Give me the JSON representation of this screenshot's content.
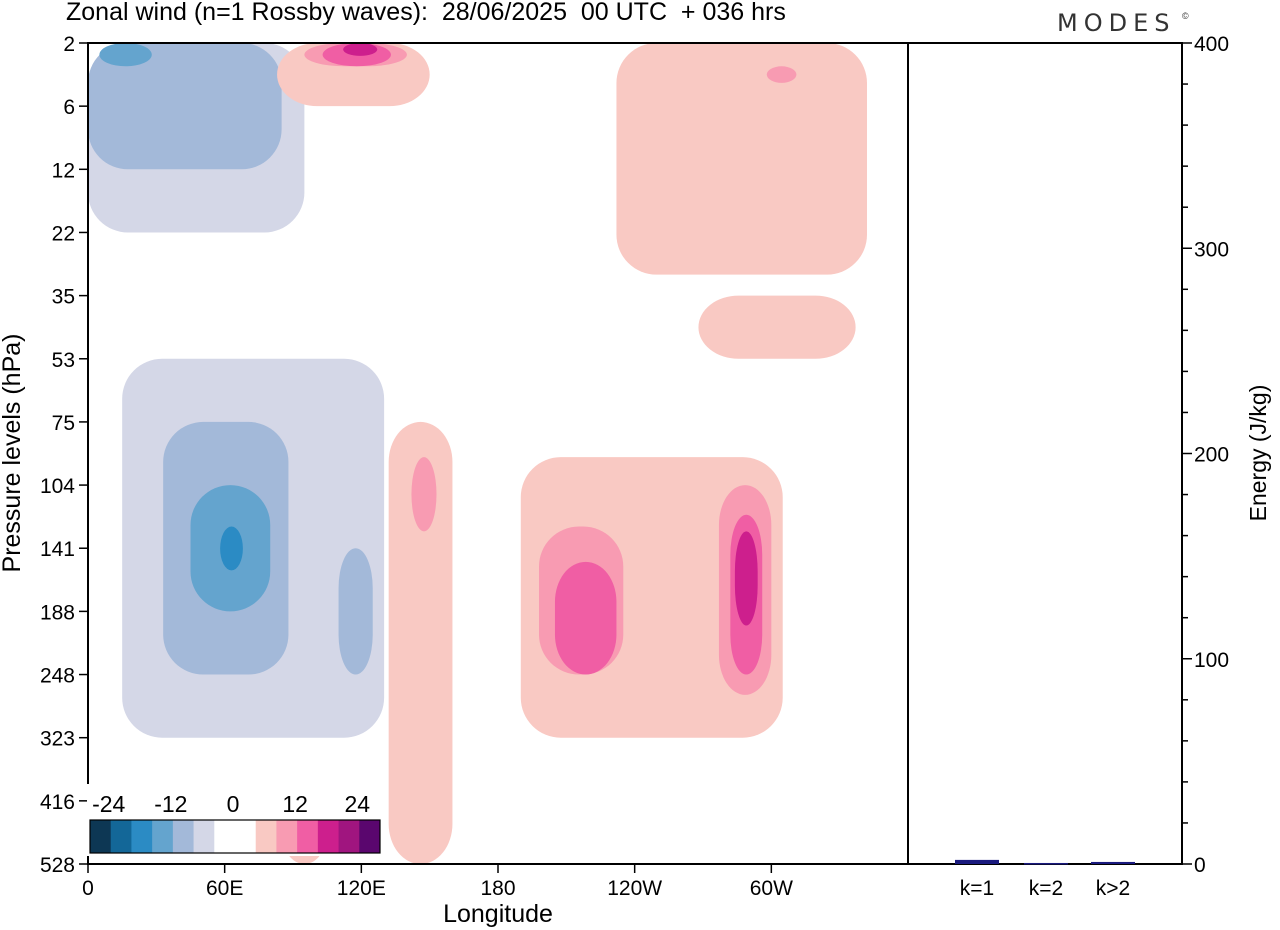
{
  "title": "Zonal wind (n=1 Rossby waves):  28/06/2025  00 UTC  + 036 hrs",
  "brand": "MODES",
  "brand_mark": "©",
  "chart_data": [
    {
      "type": "heatmap",
      "xlabel": "Longitude",
      "ylabel": "Pressure levels (hPa)",
      "x_ticks": [
        "0",
        "60E",
        "120E",
        "180",
        "120W",
        "60W"
      ],
      "x_tick_degrees": [
        0,
        60,
        120,
        180,
        240,
        300
      ],
      "xlim": [
        0,
        360
      ],
      "y_ticks": [
        "2",
        "6",
        "12",
        "22",
        "35",
        "53",
        "75",
        "104",
        "141",
        "188",
        "248",
        "323",
        "416",
        "528"
      ],
      "y_scale": "ordinal pressure levels (top = 2 hPa, bottom = 528 hPa)",
      "colorbar": {
        "tick_labels": [
          "-24",
          "-12",
          "0",
          "12",
          "24"
        ],
        "colors": [
          "#0d3754",
          "#136798",
          "#2b8bc4",
          "#64a4ce",
          "#a3b9d9",
          "#d4d7e7",
          "#ffffff",
          "#ffffff",
          "#f9c9c3",
          "#f89bb2",
          "#f05ea4",
          "#cd1f8d",
          "#a0157f",
          "#5a066e"
        ]
      },
      "regions": [
        {
          "sign": "negative",
          "level": 1,
          "lon_range": [
            0,
            95
          ],
          "pressure_range": [
            2,
            22
          ]
        },
        {
          "sign": "negative",
          "level": 2,
          "lon_range": [
            0,
            85
          ],
          "pressure_range": [
            2,
            12
          ]
        },
        {
          "sign": "negative",
          "level": 3,
          "lon_range": [
            5,
            28
          ],
          "pressure_range": [
            2,
            3
          ]
        },
        {
          "sign": "negative",
          "level": 1,
          "lon_range": [
            15,
            130
          ],
          "pressure_range": [
            53,
            323
          ]
        },
        {
          "sign": "negative",
          "level": 2,
          "lon_range": [
            33,
            88
          ],
          "pressure_range": [
            75,
            248
          ]
        },
        {
          "sign": "negative",
          "level": 3,
          "lon_range": [
            45,
            80
          ],
          "pressure_range": [
            104,
            188
          ]
        },
        {
          "sign": "negative",
          "level": 4,
          "lon_range": [
            58,
            68
          ],
          "pressure_range": [
            127,
            156
          ]
        },
        {
          "sign": "negative",
          "level": 2,
          "lon_range": [
            110,
            125
          ],
          "pressure_range": [
            141,
            248
          ]
        },
        {
          "sign": "positive",
          "level": 1,
          "lon_range": [
            83,
            150
          ],
          "pressure_range": [
            2,
            6
          ]
        },
        {
          "sign": "positive",
          "level": 2,
          "lon_range": [
            95,
            140
          ],
          "pressure_range": [
            2,
            3
          ]
        },
        {
          "sign": "positive",
          "level": 3,
          "lon_range": [
            103,
            133
          ],
          "pressure_range": [
            2,
            3
          ]
        },
        {
          "sign": "positive",
          "level": 4,
          "lon_range": [
            112,
            127
          ],
          "pressure_range": [
            2,
            2.5
          ]
        },
        {
          "sign": "positive",
          "level": 1,
          "lon_range": [
            232,
            342
          ],
          "pressure_range": [
            2,
            30
          ]
        },
        {
          "sign": "positive",
          "level": 2,
          "lon_range": [
            298,
            311
          ],
          "pressure_range": [
            3,
            4
          ]
        },
        {
          "sign": "positive",
          "level": 1,
          "lon_range": [
            268,
            337
          ],
          "pressure_range": [
            35,
            53
          ]
        },
        {
          "sign": "positive",
          "level": 1,
          "lon_range": [
            132,
            160
          ],
          "pressure_range": [
            75,
            528
          ]
        },
        {
          "sign": "positive",
          "level": 2,
          "lon_range": [
            142,
            153
          ],
          "pressure_range": [
            90,
            130
          ]
        },
        {
          "sign": "positive",
          "level": 1,
          "lon_range": [
            190,
            305
          ],
          "pressure_range": [
            90,
            323
          ]
        },
        {
          "sign": "positive",
          "level": 2,
          "lon_range": [
            198,
            235
          ],
          "pressure_range": [
            127,
            248
          ]
        },
        {
          "sign": "positive",
          "level": 3,
          "lon_range": [
            205,
            232
          ],
          "pressure_range": [
            150,
            248
          ]
        },
        {
          "sign": "positive",
          "level": 2,
          "lon_range": [
            277,
            300
          ],
          "pressure_range": [
            104,
            270
          ]
        },
        {
          "sign": "positive",
          "level": 3,
          "lon_range": [
            282,
            296
          ],
          "pressure_range": [
            120,
            248
          ]
        },
        {
          "sign": "positive",
          "level": 4,
          "lon_range": [
            284,
            294
          ],
          "pressure_range": [
            130,
            200
          ]
        },
        {
          "sign": "positive",
          "level": 1,
          "lon_range": [
            85,
            105
          ],
          "pressure_range": [
            416,
            528
          ]
        }
      ]
    },
    {
      "type": "bar",
      "categories": [
        "k=1",
        "k=2",
        "k>2"
      ],
      "values": [
        2,
        0.5,
        1
      ],
      "ylabel": "Energy (J/kg)",
      "ylim": [
        0,
        400
      ],
      "y_ticks": [
        0,
        100,
        200,
        300,
        400
      ],
      "bar_color": "#1a1a7e"
    }
  ]
}
